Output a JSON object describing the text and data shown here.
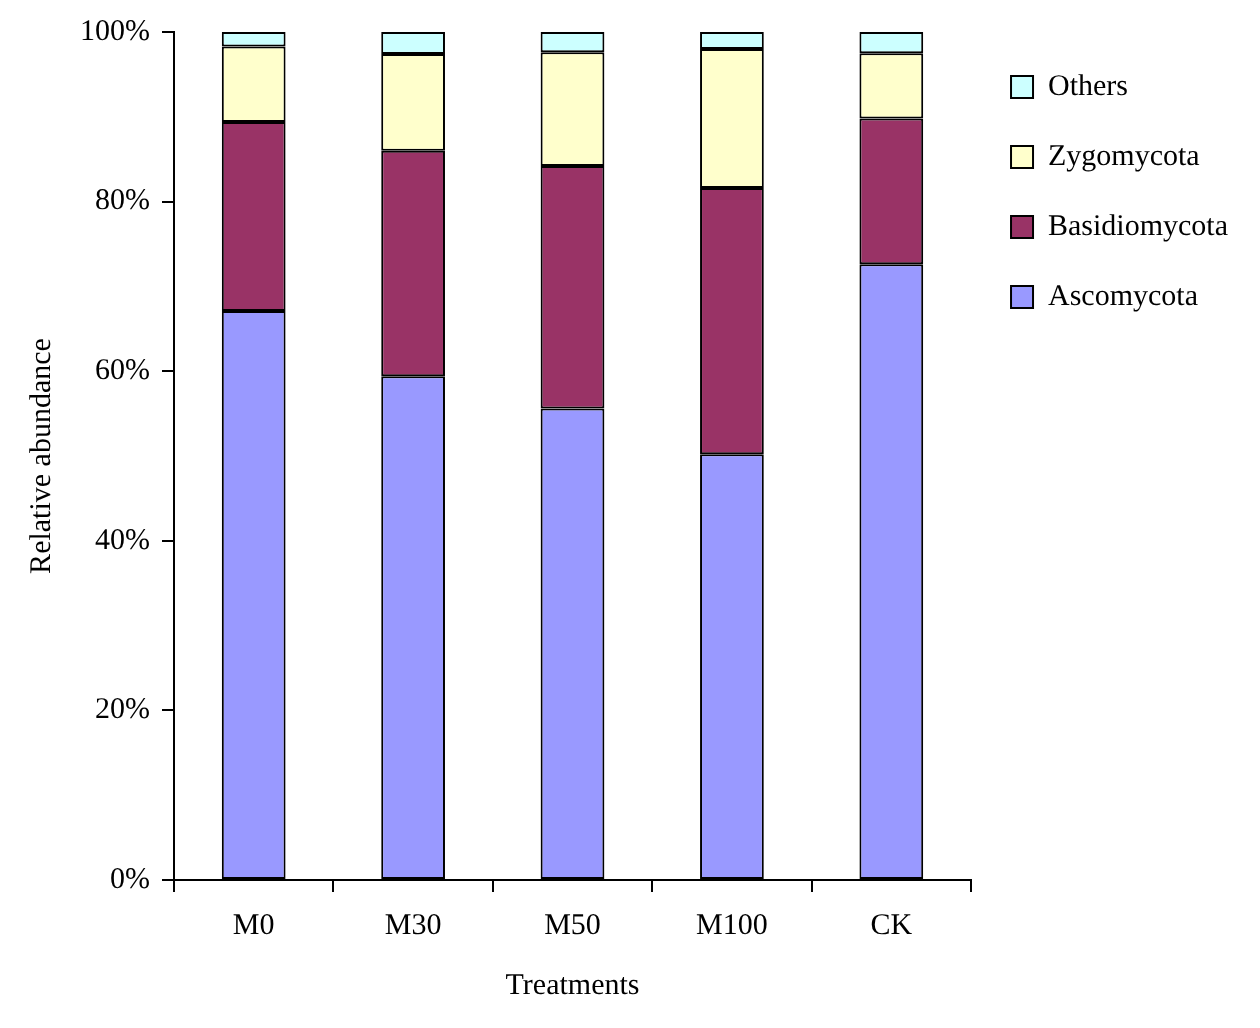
{
  "chart_data": {
    "type": "bar",
    "stacked": true,
    "xlabel": "Treatments",
    "ylabel": "Relative abundance",
    "categories": [
      "M0",
      "M30",
      "M50",
      "M100",
      "CK"
    ],
    "series": [
      {
        "name": "Ascomycota",
        "color": "#9999ff",
        "values": [
          67.1,
          59.4,
          55.6,
          50.2,
          72.6
        ]
      },
      {
        "name": "Basidiomycota",
        "color": "#993366",
        "values": [
          22.3,
          26.6,
          28.6,
          31.4,
          17.2
        ]
      },
      {
        "name": "Zygomycota",
        "color": "#ffffcc",
        "values": [
          8.9,
          11.4,
          13.4,
          16.4,
          7.7
        ]
      },
      {
        "name": "Others",
        "color": "#ccffff",
        "values": [
          1.7,
          2.6,
          2.4,
          2.0,
          2.5
        ]
      }
    ],
    "ylim": [
      0,
      100
    ],
    "yticks": [
      {
        "value": 0,
        "label": "0%"
      },
      {
        "value": 20,
        "label": "20%"
      },
      {
        "value": 40,
        "label": "40%"
      },
      {
        "value": 60,
        "label": "60%"
      },
      {
        "value": 80,
        "label": "80%"
      },
      {
        "value": 100,
        "label": "100%"
      }
    ],
    "grid": false,
    "legend": "right"
  }
}
